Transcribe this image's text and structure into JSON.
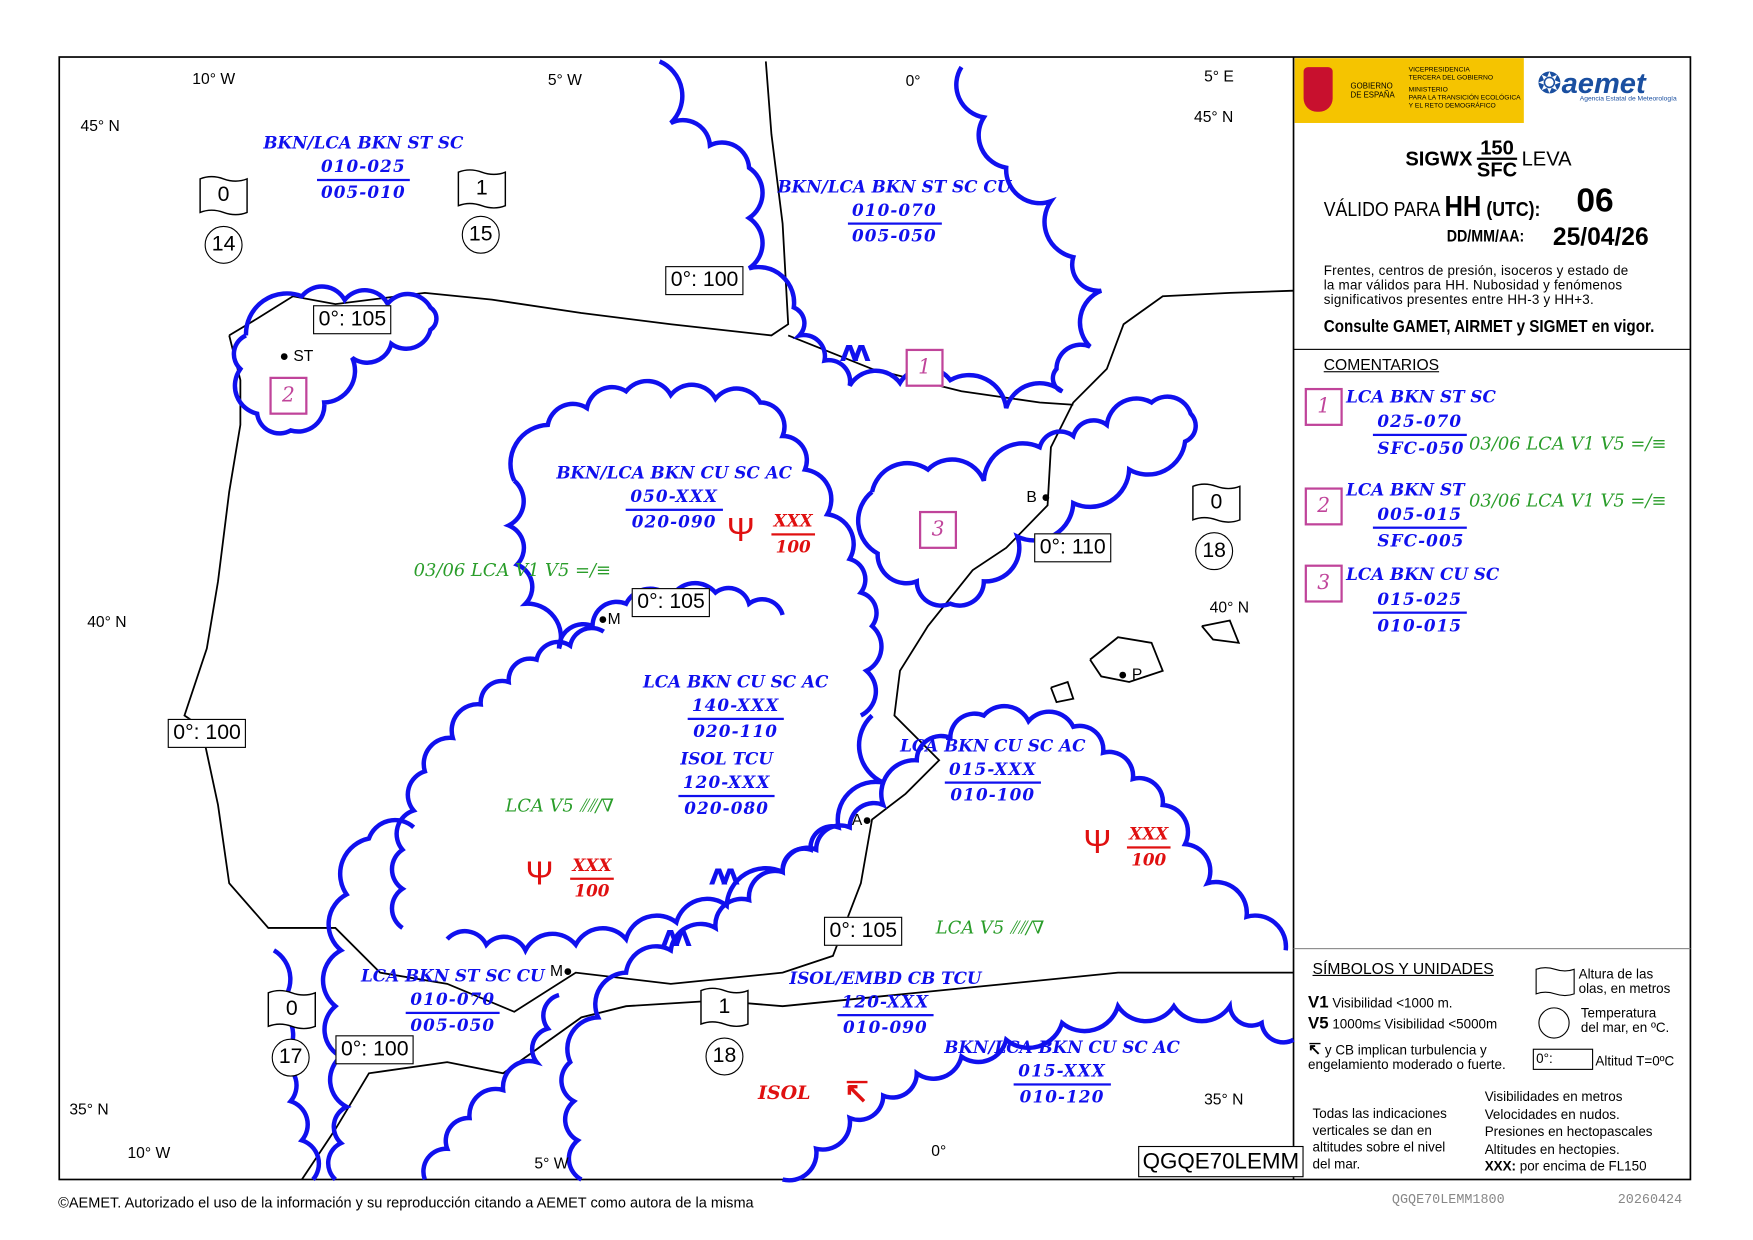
{
  "colors": {
    "cloud": "#1010ee",
    "comment_box": "#c0449a",
    "green": "#2a9d2a",
    "red": "#e01010",
    "logo_bg": "#f5c400",
    "aemet_blue": "#1a4fa0"
  },
  "map": {
    "coords": [
      "10° W",
      "5° W",
      "0°",
      "5° E",
      "45° N",
      "45° N",
      "40° N",
      "40° N",
      "35° N",
      "35° N",
      "10° W",
      "5° W",
      "0°"
    ],
    "cloud_labels": [
      {
        "title": "BKN/LCA BKN ST SC",
        "upper": "010-025",
        "lower": "005-010"
      },
      {
        "title": "BKN/LCA BKN ST SC CU",
        "upper": "010-070",
        "lower": "005-050"
      },
      {
        "title": "BKN/LCA BKN CU SC AC",
        "upper": "050-XXX",
        "lower": "020-090"
      },
      {
        "title": "LCA BKN CU SC AC",
        "upper": "140-XXX",
        "lower": "020-110"
      },
      {
        "title": "ISOL TCU",
        "upper": "120-XXX",
        "lower": "020-080"
      },
      {
        "title": "LCA BKN CU SC AC",
        "upper": "015-XXX",
        "lower": "010-100"
      },
      {
        "title": "LCA BKN ST SC CU",
        "upper": "010-070",
        "lower": "005-050"
      },
      {
        "title": "ISOL/EMBD CB TCU",
        "upper": "120-XXX",
        "lower": "010-090"
      },
      {
        "title": "BKN/LCA BKN CU SC AC",
        "upper": "015-XXX",
        "lower": "010-120"
      }
    ],
    "visibility_labels": [
      "03/06 LCA  V1 V5 =/≡",
      "LCA  V5 ⫽⫽/∇",
      "LCA  V5 ⫽⫽/∇"
    ],
    "thunderstorm_areas": [
      {
        "upper": "XXX",
        "lower": "100"
      },
      {
        "upper": "XXX",
        "lower": "100"
      },
      {
        "upper": "XXX",
        "lower": "100"
      }
    ],
    "isol_label": "ISOL",
    "freezing_levels": [
      "0°: 100",
      "0°: 105",
      "0°: 110",
      "0°: 105",
      "0°: 100",
      "0°: 105",
      "0°: 100"
    ],
    "comment_markers": [
      "1",
      "2",
      "3"
    ],
    "sea_states": [
      {
        "wave": "0",
        "temp": "14"
      },
      {
        "wave": "1",
        "temp": "15"
      },
      {
        "wave": "0",
        "temp": "18"
      },
      {
        "wave": "0",
        "temp": "17"
      },
      {
        "wave": "1",
        "temp": "18"
      }
    ],
    "cities": [
      "ST",
      "M",
      "B",
      "P",
      "A",
      "M"
    ],
    "mountain_symbol": "ʌʌ",
    "chart_code": "QGQE70LEMM"
  },
  "panel": {
    "logo": {
      "gov1": "GOBIERNO",
      "gov2": "DE ESPAÑA",
      "vp1": "VICEPRESIDENCIA",
      "vp2": "TERCERA DEL GOBIERNO",
      "min1": "MINISTERIO",
      "min2": "PARA LA TRANSICIÓN ECOLÓGICA",
      "min3": "Y EL RETO DEMOGRÁFICO",
      "aemet": "aemet",
      "aemet_sub": "Agencia Estatal de Meteorología"
    },
    "title": {
      "prefix": "SIGWX",
      "top": "150",
      "bottom": "SFC",
      "suffix": "LEVA"
    },
    "valid_label": "VÁLIDO PARA",
    "hh": "HH",
    "utc": "(UTC):",
    "hour": "06",
    "date_label": "DD/MM/AA:",
    "date": "25/04/26",
    "note1": "Frentes, centros de presión, isoceros y estado de",
    "note2": "la mar válidos para HH. Nubosidad y fenómenos",
    "note3": "significativos presentes entre HH-3 y HH+3.",
    "consult": "Consulte GAMET, AIRMET y SIGMET en vigor.",
    "comments_title": "COMENTARIOS",
    "comments": [
      {
        "num": "1",
        "title": "LCA BKN ST SC",
        "upper": "025-070",
        "lower": "SFC-050",
        "vis": "03/06 LCA  V1 V5 =/≡"
      },
      {
        "num": "2",
        "title": "LCA BKN ST",
        "upper": "005-015",
        "lower": "SFC-005",
        "vis": "03/06 LCA  V1 V5 =/≡"
      },
      {
        "num": "3",
        "title": "LCA BKN CU SC",
        "upper": "015-025",
        "lower": "010-015",
        "vis": ""
      }
    ],
    "symbols_title": "SÍMBOLOS Y UNIDADES",
    "v1": "V1",
    "v1_text": "Visibilidad <1000 m.",
    "v5": "V5",
    "v5_text": "1000m≤ Visibilidad <5000m",
    "turb_text1": "y CB  implican turbulencia y",
    "turb_sym": "CB",
    "turb_text2": "engelamiento moderado o fuerte.",
    "wave_legend1": "Altura de las",
    "wave_legend2": "olas, en metros",
    "temp_legend1": "Temperatura",
    "temp_legend2": "del mar, en ºC.",
    "frz_box": "0°:",
    "frz_legend": "Altitud T=0ºC",
    "vertical1": "Todas las indicaciones",
    "vertical2": "verticales se dan en",
    "vertical3": "altitudes sobre el nivel",
    "vertical4": "del mar.",
    "units": [
      "Visibilidades en metros",
      "Velocidades en nudos.",
      "Presiones en hectopascales",
      "Altitudes en hectopies."
    ],
    "xxx": "XXX:",
    "xxx_text": "por encima de FL150"
  },
  "footer": {
    "copyright": "©AEMET. Autorizado el uso de la información y su reproducción citando a AEMET como autora de la misma",
    "code": "QGQE70LEMM1800",
    "date": "20260424"
  }
}
